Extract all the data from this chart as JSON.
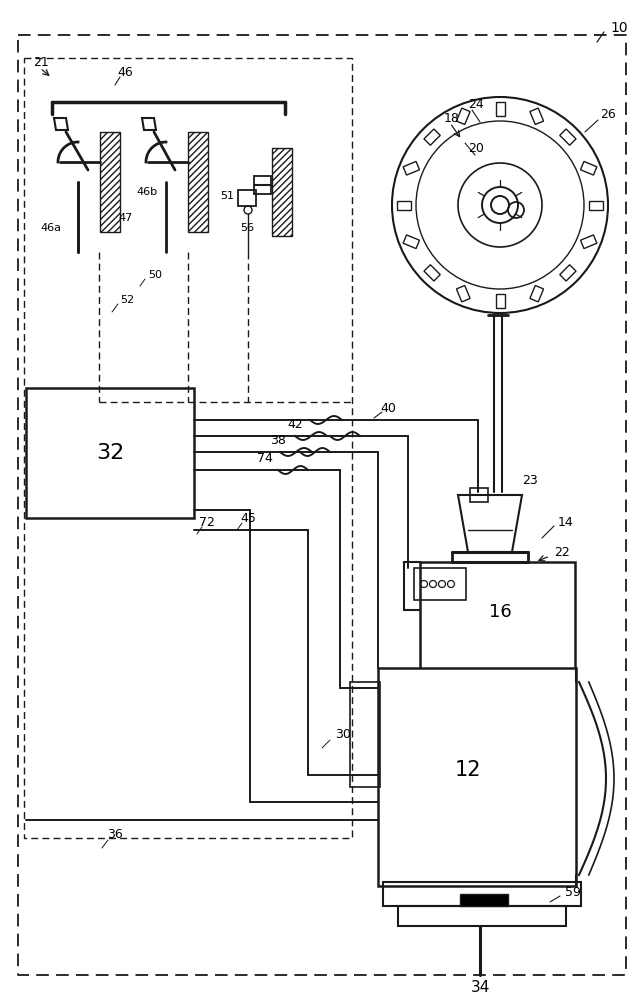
{
  "bg": "#ffffff",
  "lc": "#1a1a1a",
  "figsize": [
    6.43,
    10.0
  ],
  "dpi": 100
}
